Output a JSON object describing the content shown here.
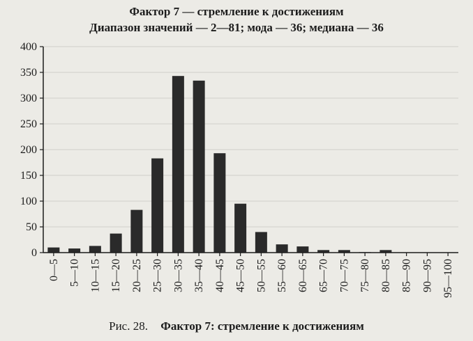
{
  "caption": {
    "number": "Рис. 28.",
    "title": "Фактор 7:  стремление к достижениям"
  },
  "colors": {
    "bar": "#2a2a2a",
    "ghost_bar": "#d9d8d3",
    "background": "#ecebe6",
    "grid": "#cfcfca"
  },
  "chart_data": {
    "type": "bar",
    "title": "Фактор 7 — стремление к достижениям",
    "subtitle": "Диапазон значений — 2—81; мода — 36; медиана — 36",
    "xlabel": "",
    "ylabel": "",
    "categories": [
      "0—5",
      "5—10",
      "10—15",
      "15—20",
      "20—25",
      "25—30",
      "30—35",
      "35—40",
      "40—45",
      "45—50",
      "50—55",
      "55—60",
      "60—65",
      "65—70",
      "70—75",
      "75—80",
      "80—85",
      "85—90",
      "90—95",
      "95—100"
    ],
    "values": [
      10,
      8,
      13,
      37,
      83,
      183,
      343,
      334,
      193,
      95,
      40,
      16,
      12,
      5,
      5,
      1,
      5,
      0,
      0,
      0
    ],
    "ylim": [
      0,
      400
    ],
    "yticks": [
      0,
      50,
      100,
      150,
      200,
      250,
      300,
      350,
      400
    ],
    "grid": true,
    "legend": "none"
  }
}
